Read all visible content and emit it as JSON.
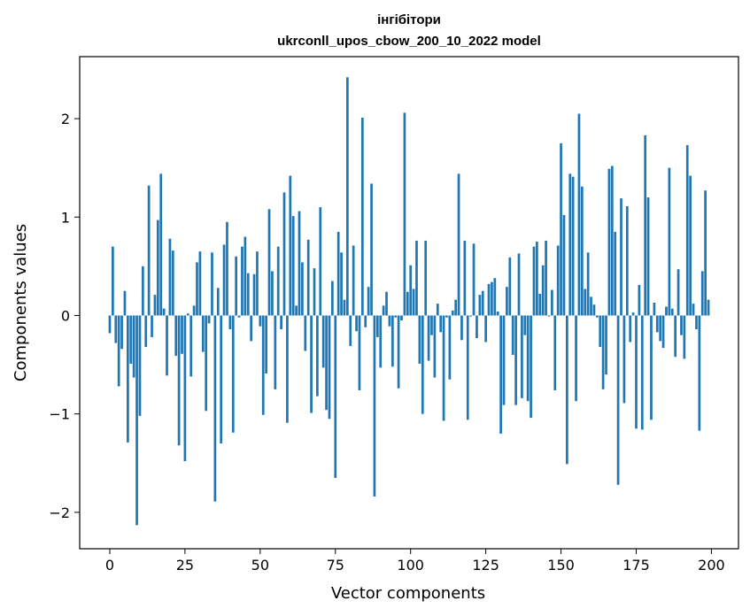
{
  "chart_data": {
    "type": "bar",
    "title": "інгібітори",
    "subtitle": "ukrconll_upos_cbow_200_10_2022 model",
    "xlabel": "Vector components",
    "ylabel": "Components values",
    "xlim": [
      -10,
      209
    ],
    "ylim": [
      -2.37,
      2.63
    ],
    "xticks": [
      0,
      25,
      50,
      75,
      100,
      125,
      150,
      175,
      200
    ],
    "xtick_labels": [
      "0",
      "25",
      "50",
      "75",
      "100",
      "125",
      "150",
      "175",
      "200"
    ],
    "yticks": [
      -2,
      -1,
      0,
      1,
      2
    ],
    "ytick_labels": [
      "−2",
      "−1",
      "0",
      "1",
      "2"
    ],
    "grid": false,
    "bar_color": "#1f77b4",
    "x": [
      0,
      1,
      2,
      3,
      4,
      5,
      6,
      7,
      8,
      9,
      10,
      11,
      12,
      13,
      14,
      15,
      16,
      17,
      18,
      19,
      20,
      21,
      22,
      23,
      24,
      25,
      26,
      27,
      28,
      29,
      30,
      31,
      32,
      33,
      34,
      35,
      36,
      37,
      38,
      39,
      40,
      41,
      42,
      43,
      44,
      45,
      46,
      47,
      48,
      49,
      50,
      51,
      52,
      53,
      54,
      55,
      56,
      57,
      58,
      59,
      60,
      61,
      62,
      63,
      64,
      65,
      66,
      67,
      68,
      69,
      70,
      71,
      72,
      73,
      74,
      75,
      76,
      77,
      78,
      79,
      80,
      81,
      82,
      83,
      84,
      85,
      86,
      87,
      88,
      89,
      90,
      91,
      92,
      93,
      94,
      95,
      96,
      97,
      98,
      99,
      100,
      101,
      102,
      103,
      104,
      105,
      106,
      107,
      108,
      109,
      110,
      111,
      112,
      113,
      114,
      115,
      116,
      117,
      118,
      119,
      120,
      121,
      122,
      123,
      124,
      125,
      126,
      127,
      128,
      129,
      130,
      131,
      132,
      133,
      134,
      135,
      136,
      137,
      138,
      139,
      140,
      141,
      142,
      143,
      144,
      145,
      146,
      147,
      148,
      149,
      150,
      151,
      152,
      153,
      154,
      155,
      156,
      157,
      158,
      159,
      160,
      161,
      162,
      163,
      164,
      165,
      166,
      167,
      168,
      169,
      170,
      171,
      172,
      173,
      174,
      175,
      176,
      177,
      178,
      179,
      180,
      181,
      182,
      183,
      184,
      185,
      186,
      187,
      188,
      189,
      190,
      191,
      192,
      193,
      194,
      195,
      196,
      197,
      198,
      199
    ],
    "values": [
      -0.18,
      0.7,
      -0.28,
      -0.72,
      -0.34,
      0.25,
      -1.29,
      -0.49,
      -0.63,
      -2.13,
      -1.02,
      0.5,
      -0.32,
      1.32,
      -0.22,
      0.21,
      0.97,
      1.44,
      0.07,
      -0.61,
      0.78,
      0.66,
      -0.41,
      -1.32,
      -0.39,
      -1.48,
      0.02,
      -0.62,
      0.1,
      0.54,
      0.65,
      -0.37,
      -0.97,
      -0.08,
      0.64,
      -1.89,
      0.28,
      -1.3,
      0.72,
      0.95,
      -0.14,
      -1.19,
      0.6,
      -0.02,
      0.7,
      0.8,
      0.43,
      -0.26,
      0.42,
      0.65,
      -0.11,
      -1.01,
      -0.59,
      1.08,
      0.45,
      -0.75,
      0.7,
      -0.14,
      1.25,
      -1.09,
      1.42,
      1.01,
      0.1,
      1.06,
      0.54,
      -0.36,
      0.77,
      -0.99,
      0.48,
      -0.82,
      1.1,
      -0.53,
      -0.96,
      -1.05,
      0.35,
      -1.65,
      0.85,
      0.64,
      0.16,
      2.42,
      -0.31,
      0.71,
      -0.16,
      -0.76,
      2.01,
      -0.12,
      0.29,
      1.34,
      -1.84,
      -0.22,
      -0.53,
      0.1,
      0.24,
      -0.11,
      -0.52,
      -0.02,
      -0.74,
      -0.05,
      2.06,
      0.24,
      0.51,
      0.27,
      0.76,
      -0.49,
      -1.0,
      0.76,
      -0.46,
      -0.2,
      -0.63,
      0.12,
      -0.17,
      -1.07,
      -0.02,
      -0.65,
      0.05,
      0.16,
      1.44,
      -0.25,
      0.76,
      -1.06,
      -0.01,
      0.73,
      -0.23,
      0.21,
      0.25,
      -0.27,
      0.32,
      0.34,
      0.38,
      0.04,
      -1.2,
      -0.91,
      0.29,
      0.59,
      -0.4,
      -0.91,
      0.63,
      -0.84,
      -0.2,
      -0.87,
      -1.04,
      0.7,
      0.75,
      0.22,
      0.51,
      0.76,
      -0.01,
      0.26,
      -0.76,
      0.71,
      1.75,
      1.02,
      -1.51,
      1.44,
      1.41,
      -0.87,
      2.05,
      1.31,
      0.27,
      0.64,
      0.19,
      0.11,
      -0.02,
      -0.32,
      -0.75,
      -0.6,
      1.49,
      1.52,
      0.85,
      -1.72,
      1.19,
      -0.89,
      1.11,
      -0.27,
      0.03,
      -1.15,
      0.31,
      -1.16,
      1.83,
      1.2,
      -1.06,
      0.13,
      -0.17,
      -0.26,
      -0.33,
      0.09,
      1.5,
      0.07,
      -0.42,
      0.47,
      -0.2,
      -0.44,
      1.73,
      1.42,
      0.12,
      -0.14,
      -1.17,
      0.45,
      1.27,
      0.16
    ]
  }
}
